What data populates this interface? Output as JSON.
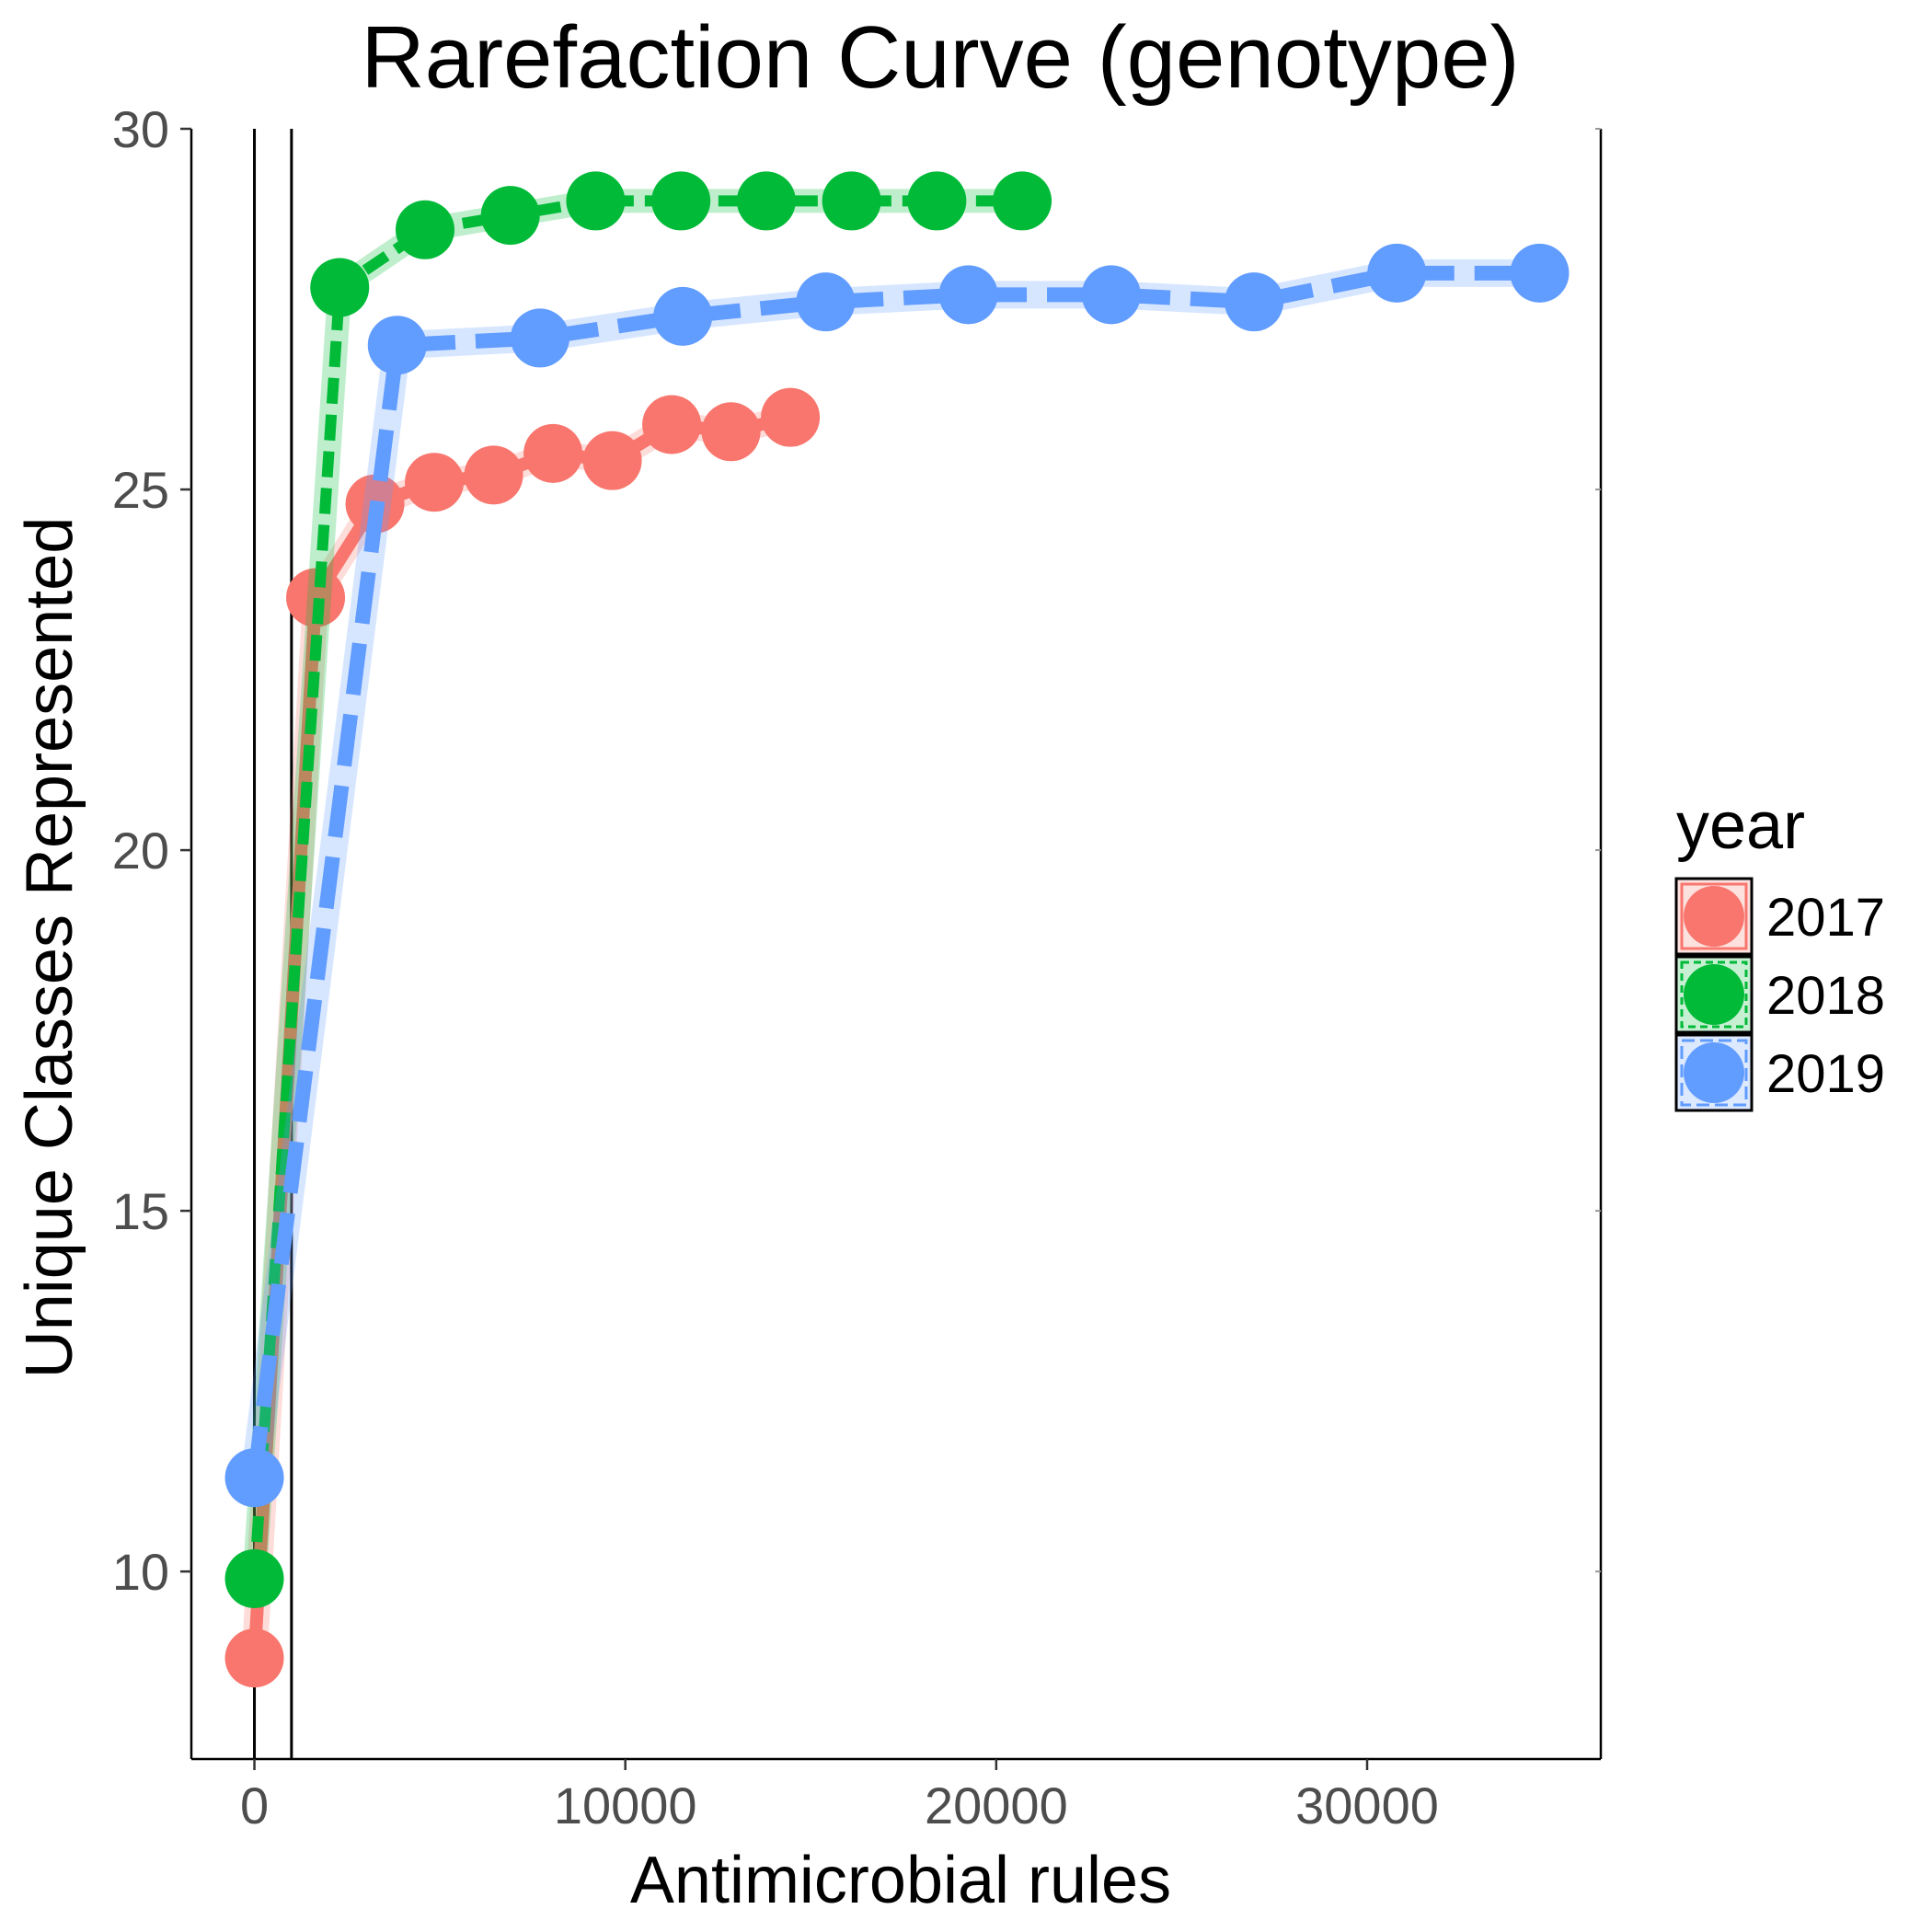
{
  "chart_data": {
    "type": "line",
    "title": "Rarefaction Curve (genotype)",
    "xlabel": "Antimicrobial rules",
    "ylabel": "Unique Classes Represented",
    "xlim": [
      -1700,
      36300
    ],
    "ylim": [
      7.4,
      30
    ],
    "xticks": [
      0,
      10000,
      20000,
      30000
    ],
    "yticks": [
      10,
      15,
      20,
      25,
      30
    ],
    "vlines": [
      0,
      1000
    ],
    "grid": false,
    "legend": {
      "title": "year",
      "position": "right"
    },
    "series": [
      {
        "name": "2017",
        "color": "#F8766D",
        "x": [
          0,
          1650,
          3250,
          4850,
          6450,
          8050,
          9650,
          11250,
          12850,
          14450
        ],
        "y": [
          8.8,
          23.5,
          24.8,
          25.1,
          25.2,
          25.5,
          25.4,
          25.9,
          25.8,
          26.0
        ]
      },
      {
        "name": "2018",
        "color": "#00BA38",
        "x": [
          0,
          2300,
          4600,
          6900,
          9200,
          11500,
          13800,
          16100,
          18400,
          20700
        ],
        "y": [
          9.9,
          27.8,
          28.6,
          28.8,
          29.0,
          29.0,
          29.0,
          29.0,
          29.0,
          29.0
        ]
      },
      {
        "name": "2019",
        "color": "#619CFF",
        "x": [
          0,
          3850,
          7700,
          11550,
          15400,
          19250,
          23100,
          26950,
          30800,
          34650
        ],
        "y": [
          11.3,
          27.0,
          27.1,
          27.4,
          27.6,
          27.7,
          27.7,
          27.6,
          28.0,
          28.0
        ]
      }
    ]
  }
}
